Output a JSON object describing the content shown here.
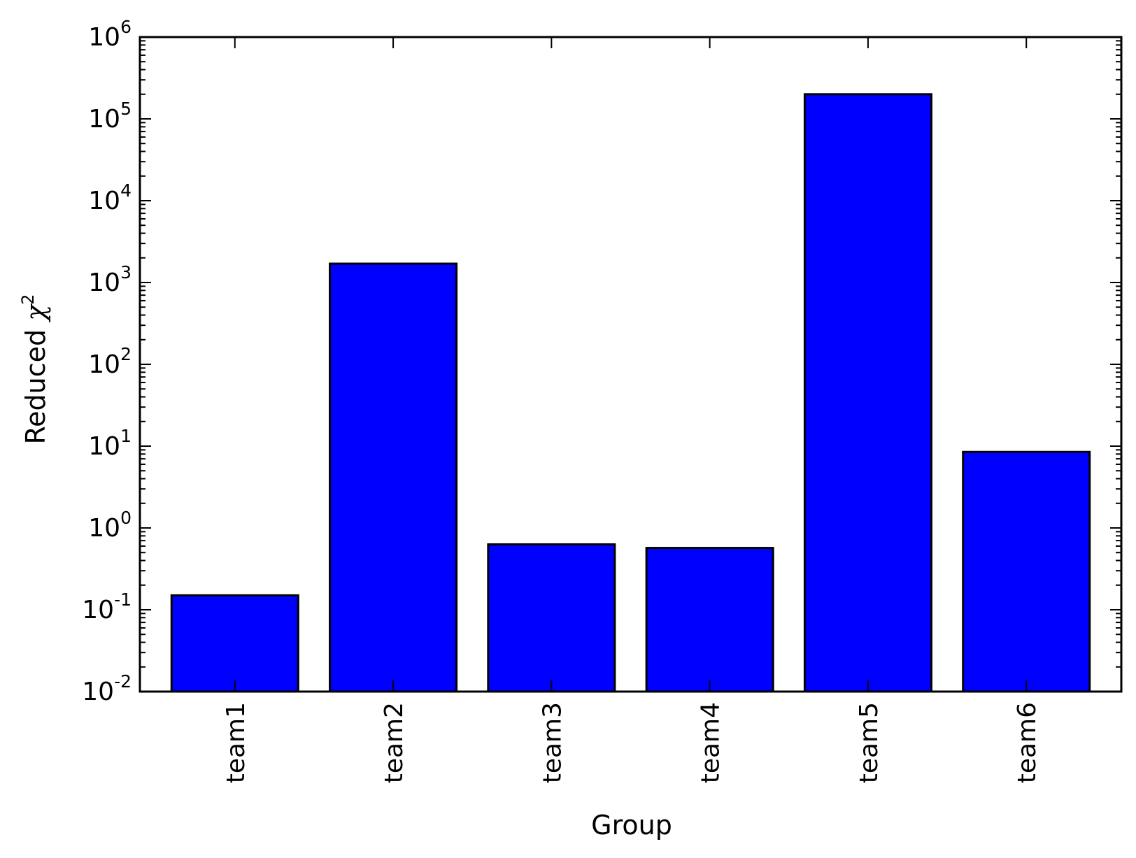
{
  "chart_data": {
    "type": "bar",
    "categories": [
      "team1",
      "team2",
      "team3",
      "team4",
      "team5",
      "team6"
    ],
    "values": [
      0.15,
      1700,
      0.63,
      0.57,
      200000,
      8.5
    ],
    "xlabel": "Group",
    "ylabel": {
      "prefix": "Reduced ",
      "symbol": "χ",
      "superscript": "2"
    },
    "yscale": "log",
    "ylim": [
      0.01,
      1000000
    ],
    "y_tick_base": "10",
    "y_tick_exponents": [
      "-2",
      "-1",
      "0",
      "1",
      "2",
      "3",
      "4",
      "5",
      "6"
    ],
    "bar_color": "#0000ff",
    "edge_color": "#000000",
    "grid": false,
    "legend": "none"
  }
}
